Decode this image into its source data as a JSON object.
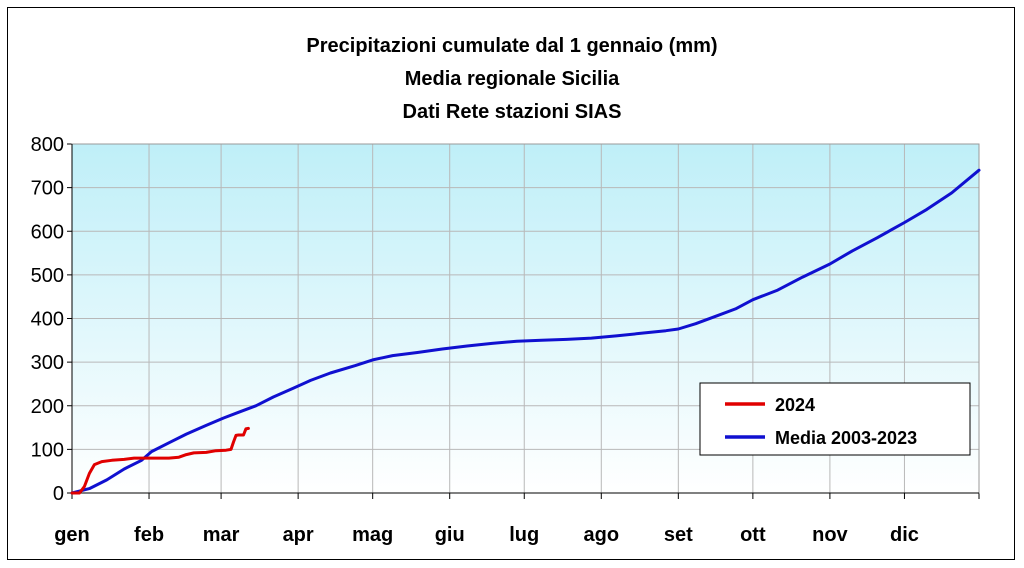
{
  "chart_data": {
    "type": "line",
    "title": "Precipitazioni cumulate dal 1 gennaio (mm)",
    "subtitle_lines": [
      "Media regionale Sicilia",
      "Dati Rete stazioni SIAS"
    ],
    "xlabel": "",
    "ylabel": "",
    "x_unit": "day of year",
    "xlim": [
      1,
      366
    ],
    "ylim": [
      0,
      800
    ],
    "y_ticks": [
      0,
      100,
      200,
      300,
      400,
      500,
      600,
      700,
      800
    ],
    "x_tick_labels": [
      {
        "label": "gen",
        "day": 1
      },
      {
        "label": "feb",
        "day": 32
      },
      {
        "label": "mar",
        "day": 61
      },
      {
        "label": "apr",
        "day": 92
      },
      {
        "label": "mag",
        "day": 122
      },
      {
        "label": "giu",
        "day": 153
      },
      {
        "label": "lug",
        "day": 183
      },
      {
        "label": "ago",
        "day": 214
      },
      {
        "label": "set",
        "day": 245
      },
      {
        "label": "ott",
        "day": 275
      },
      {
        "label": "nov",
        "day": 306
      },
      {
        "label": "dic",
        "day": 336
      }
    ],
    "grid": true,
    "legend_position": "bottom-right",
    "series": [
      {
        "name": "2024",
        "color": "#e00000",
        "points": [
          [
            1,
            0
          ],
          [
            4,
            0
          ],
          [
            6,
            15
          ],
          [
            8,
            45
          ],
          [
            10,
            65
          ],
          [
            13,
            72
          ],
          [
            17,
            75
          ],
          [
            22,
            77
          ],
          [
            26,
            80
          ],
          [
            32,
            80
          ],
          [
            40,
            80
          ],
          [
            44,
            82
          ],
          [
            47,
            88
          ],
          [
            50,
            92
          ],
          [
            55,
            93
          ],
          [
            59,
            97
          ],
          [
            63,
            98
          ],
          [
            65,
            100
          ],
          [
            66,
            117
          ],
          [
            67,
            132
          ],
          [
            68,
            133
          ],
          [
            70,
            133
          ],
          [
            71,
            147
          ],
          [
            72,
            148
          ]
        ]
      },
      {
        "name": "Media 2003-2023",
        "color": "#1010d0",
        "points": [
          [
            1,
            0
          ],
          [
            8,
            10
          ],
          [
            15,
            30
          ],
          [
            22,
            55
          ],
          [
            29,
            75
          ],
          [
            33,
            95
          ],
          [
            40,
            115
          ],
          [
            47,
            135
          ],
          [
            55,
            155
          ],
          [
            62,
            172
          ],
          [
            68,
            185
          ],
          [
            75,
            200
          ],
          [
            82,
            220
          ],
          [
            90,
            240
          ],
          [
            97,
            258
          ],
          [
            105,
            275
          ],
          [
            115,
            292
          ],
          [
            122,
            305
          ],
          [
            130,
            315
          ],
          [
            140,
            322
          ],
          [
            150,
            330
          ],
          [
            160,
            337
          ],
          [
            170,
            343
          ],
          [
            180,
            348
          ],
          [
            190,
            350
          ],
          [
            200,
            352
          ],
          [
            210,
            355
          ],
          [
            220,
            360
          ],
          [
            230,
            366
          ],
          [
            240,
            372
          ],
          [
            245,
            376
          ],
          [
            252,
            388
          ],
          [
            260,
            405
          ],
          [
            268,
            422
          ],
          [
            275,
            443
          ],
          [
            285,
            465
          ],
          [
            295,
            495
          ],
          [
            306,
            525
          ],
          [
            315,
            555
          ],
          [
            325,
            585
          ],
          [
            336,
            620
          ],
          [
            345,
            650
          ],
          [
            355,
            688
          ],
          [
            366,
            740
          ]
        ]
      }
    ]
  }
}
